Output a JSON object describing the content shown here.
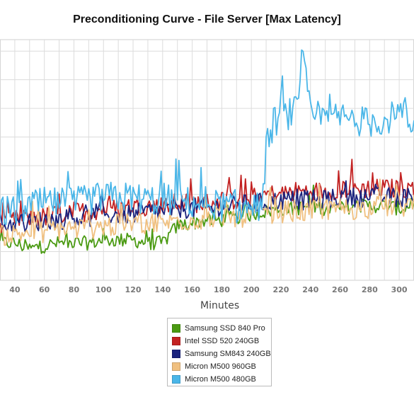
{
  "chart_data": {
    "type": "line",
    "title": "Preconditioning Curve - File Server [Max Latency]",
    "xlabel": "Minutes",
    "ylabel": "",
    "xlim": [
      30,
      310
    ],
    "ylim": [
      0,
      8.4
    ],
    "x_ticks": [
      "40",
      "60",
      "80",
      "100",
      "120",
      "140",
      "160",
      "180",
      "200",
      "220",
      "240",
      "260",
      "280",
      "300"
    ],
    "grid": true,
    "legend_position": "bottom-center",
    "series": [
      {
        "name": "Samsung SSD 840 Pro",
        "color": "#4a9a12",
        "x": [
          30,
          40,
          50,
          60,
          70,
          80,
          90,
          100,
          110,
          120,
          130,
          140,
          150,
          160,
          170,
          180,
          190,
          200,
          210,
          220,
          230,
          240,
          250,
          260,
          270,
          280,
          290,
          300,
          310
        ],
        "values": [
          1.3,
          1.3,
          1.1,
          1.2,
          1.3,
          1.3,
          1.3,
          1.4,
          1.4,
          1.4,
          1.3,
          1.3,
          1.9,
          2.0,
          2.1,
          2.1,
          2.2,
          2.3,
          2.4,
          2.5,
          2.5,
          2.6,
          2.5,
          2.5,
          2.6,
          2.6,
          2.6,
          2.5,
          2.6
        ]
      },
      {
        "name": "Intel SSD 520 240GB",
        "color": "#c32222",
        "x": [
          30,
          40,
          50,
          60,
          70,
          80,
          90,
          100,
          110,
          120,
          130,
          140,
          150,
          160,
          170,
          180,
          190,
          200,
          210,
          220,
          230,
          240,
          250,
          260,
          270,
          280,
          290,
          300,
          310
        ],
        "values": [
          2.0,
          2.1,
          2.2,
          2.2,
          2.3,
          2.4,
          2.4,
          2.5,
          2.5,
          2.6,
          2.6,
          2.6,
          2.7,
          2.7,
          2.7,
          2.8,
          2.8,
          2.9,
          3.0,
          3.0,
          3.1,
          3.1,
          3.1,
          3.2,
          3.2,
          3.2,
          3.2,
          3.2,
          3.2
        ]
      },
      {
        "name": "Samsung SM843 240GB",
        "color": "#1a237e",
        "x": [
          30,
          40,
          50,
          60,
          70,
          80,
          90,
          100,
          110,
          120,
          130,
          140,
          150,
          160,
          170,
          180,
          190,
          200,
          210,
          220,
          230,
          240,
          250,
          260,
          270,
          280,
          290,
          300,
          310
        ],
        "values": [
          1.9,
          2.0,
          2.0,
          2.1,
          2.1,
          2.2,
          2.2,
          2.3,
          2.3,
          2.3,
          2.4,
          2.4,
          2.5,
          2.5,
          2.5,
          2.6,
          2.6,
          2.7,
          2.7,
          2.8,
          2.8,
          2.8,
          2.8,
          2.9,
          2.9,
          2.9,
          2.9,
          2.9,
          2.9
        ]
      },
      {
        "name": "Micron M500 960GB",
        "color": "#f0c080",
        "x": [
          30,
          40,
          50,
          60,
          70,
          80,
          90,
          100,
          110,
          120,
          130,
          140,
          150,
          160,
          170,
          180,
          190,
          200,
          210,
          220,
          230,
          240,
          250,
          260,
          270,
          280,
          290,
          300,
          310
        ],
        "values": [
          1.6,
          1.6,
          1.7,
          1.7,
          1.8,
          1.8,
          1.8,
          1.9,
          1.9,
          2.0,
          2.0,
          2.0,
          2.1,
          2.1,
          2.2,
          2.2,
          2.2,
          2.3,
          2.3,
          2.4,
          2.4,
          2.4,
          2.5,
          2.5,
          2.5,
          2.5,
          2.6,
          2.6,
          2.6
        ]
      },
      {
        "name": "Micron M500 480GB",
        "color": "#4ab6e8",
        "x": [
          30,
          40,
          50,
          60,
          70,
          80,
          90,
          100,
          110,
          120,
          130,
          140,
          150,
          160,
          170,
          180,
          190,
          200,
          205,
          208,
          210,
          215,
          220,
          230,
          235,
          240,
          250,
          260,
          270,
          280,
          290,
          300,
          310
        ],
        "values": [
          2.4,
          2.4,
          2.6,
          2.7,
          2.7,
          2.7,
          2.8,
          2.9,
          2.9,
          2.9,
          2.8,
          2.8,
          2.8,
          2.7,
          2.7,
          2.6,
          2.5,
          2.5,
          2.6,
          3.0,
          4.6,
          5.5,
          5.7,
          5.9,
          7.7,
          5.7,
          5.6,
          5.7,
          5.6,
          5.5,
          5.6,
          5.8,
          5.3
        ]
      }
    ]
  }
}
